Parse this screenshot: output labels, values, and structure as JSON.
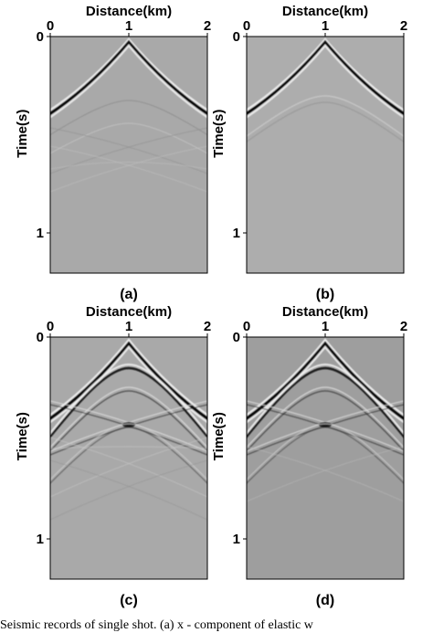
{
  "figure": {
    "panels": [
      {
        "id": "a",
        "label": "(a)",
        "title": "Distance(km)",
        "x_ticks": [
          "0",
          "1",
          "2"
        ],
        "y_label": "Time(s)",
        "y_ticks": [
          "0",
          "1"
        ],
        "background": "#a9a9a9"
      },
      {
        "id": "b",
        "label": "(b)",
        "title": "Distance(km)",
        "x_ticks": [
          "0",
          "1",
          "2"
        ],
        "y_label": "Time(s)",
        "y_ticks": [
          "0",
          "1"
        ],
        "background": "#adadad"
      },
      {
        "id": "c",
        "label": "(c)",
        "title": "Distance(km)",
        "x_ticks": [
          "0",
          "1",
          "2"
        ],
        "y_label": "Time(s)",
        "y_ticks": [
          "0",
          "1"
        ],
        "background": "#a9a9a9"
      },
      {
        "id": "d",
        "label": "(d)",
        "title": "Distance(km)",
        "x_ticks": [
          "0",
          "1",
          "2"
        ],
        "y_label": "Time(s)",
        "y_ticks": [
          "0",
          "1"
        ],
        "background": "#9e9e9e"
      }
    ],
    "caption_fragment": "Seismic records of single shot. (a) x - component of elastic w"
  },
  "colors": {
    "wavefront_dark": "#0a0a0a",
    "wavefront_light": "#f2f2f2"
  }
}
